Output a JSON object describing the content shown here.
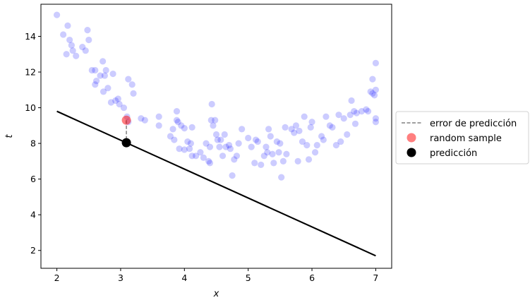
{
  "chart_data": {
    "type": "scatter",
    "title": "",
    "xlabel": "x",
    "ylabel": "t",
    "xlim": [
      1.75,
      7.25
    ],
    "ylim": [
      1.0,
      15.8
    ],
    "xticks": [
      2,
      3,
      4,
      5,
      6,
      7
    ],
    "yticks": [
      2,
      4,
      6,
      8,
      10,
      12,
      14
    ],
    "xtick_labels": [
      "2",
      "3",
      "4",
      "5",
      "6",
      "7"
    ],
    "ytick_labels": [
      "2",
      "4",
      "6",
      "8",
      "10",
      "12",
      "14"
    ],
    "grid": false,
    "legend_position": "outside-right",
    "colors": {
      "data_points": "#0000ff",
      "error_line": "#808080",
      "random_sample": "#ff0000",
      "prediction": "#000000",
      "model_line": "#000000"
    },
    "series": [
      {
        "kind": "scatter",
        "alpha": 0.2,
        "points": [
          [
            2.0,
            15.2
          ],
          [
            2.1,
            14.1
          ],
          [
            2.17,
            14.6
          ],
          [
            2.2,
            13.8
          ],
          [
            2.15,
            13.0
          ],
          [
            2.23,
            13.5
          ],
          [
            2.25,
            13.2
          ],
          [
            2.3,
            12.9
          ],
          [
            2.4,
            13.4
          ],
          [
            2.45,
            13.2
          ],
          [
            2.48,
            14.35
          ],
          [
            2.5,
            13.8
          ],
          [
            2.55,
            12.1
          ],
          [
            2.6,
            12.1
          ],
          [
            2.6,
            11.3
          ],
          [
            2.62,
            11.5
          ],
          [
            2.68,
            11.8
          ],
          [
            2.72,
            12.6
          ],
          [
            2.75,
            11.8
          ],
          [
            2.73,
            10.9
          ],
          [
            2.77,
            12.1
          ],
          [
            2.8,
            11.1
          ],
          [
            2.85,
            10.3
          ],
          [
            2.88,
            11.9
          ],
          [
            2.92,
            10.4
          ],
          [
            2.96,
            10.5
          ],
          [
            2.98,
            10.2
          ],
          [
            3.05,
            10.0
          ],
          [
            3.1,
            9.5
          ],
          [
            3.12,
            9.2
          ],
          [
            3.12,
            11.6
          ],
          [
            3.18,
            11.3
          ],
          [
            3.2,
            10.8
          ],
          [
            3.32,
            9.4
          ],
          [
            3.38,
            9.3
          ],
          [
            3.6,
            9.5
          ],
          [
            3.6,
            9.0
          ],
          [
            3.78,
            8.4
          ],
          [
            3.82,
            8.8
          ],
          [
            3.84,
            8.2
          ],
          [
            3.88,
            9.3
          ],
          [
            3.9,
            9.2
          ],
          [
            3.92,
            7.7
          ],
          [
            3.95,
            9.0
          ],
          [
            3.88,
            9.8
          ],
          [
            4.0,
            7.65
          ],
          [
            4.0,
            8.85
          ],
          [
            4.05,
            8.1
          ],
          [
            4.08,
            7.7
          ],
          [
            4.1,
            8.0
          ],
          [
            4.12,
            8.9
          ],
          [
            4.12,
            7.3
          ],
          [
            4.18,
            7.3
          ],
          [
            4.25,
            7.5
          ],
          [
            4.3,
            7.2
          ],
          [
            4.34,
            8.0
          ],
          [
            4.38,
            7.0
          ],
          [
            4.4,
            6.9
          ],
          [
            4.4,
            7.8
          ],
          [
            4.42,
            9.3
          ],
          [
            4.43,
            10.2
          ],
          [
            4.45,
            9.0
          ],
          [
            4.48,
            9.3
          ],
          [
            4.5,
            8.5
          ],
          [
            4.52,
            8.2
          ],
          [
            4.55,
            7.8
          ],
          [
            4.57,
            8.2
          ],
          [
            4.6,
            7.3
          ],
          [
            4.63,
            8.5
          ],
          [
            4.65,
            7.8
          ],
          [
            4.7,
            7.9
          ],
          [
            4.72,
            7.7
          ],
          [
            4.75,
            6.2
          ],
          [
            4.78,
            7.1
          ],
          [
            4.82,
            7.3
          ],
          [
            4.85,
            8.0
          ],
          [
            4.9,
            8.8
          ],
          [
            5.0,
            8.3
          ],
          [
            5.05,
            7.8
          ],
          [
            5.1,
            6.9
          ],
          [
            5.12,
            8.2
          ],
          [
            5.15,
            8.1
          ],
          [
            5.2,
            6.8
          ],
          [
            5.25,
            7.3
          ],
          [
            5.28,
            7.8
          ],
          [
            5.3,
            7.5
          ],
          [
            5.32,
            8.8
          ],
          [
            5.35,
            8.4
          ],
          [
            5.38,
            7.4
          ],
          [
            5.4,
            6.9
          ],
          [
            5.45,
            8.1
          ],
          [
            5.48,
            7.5
          ],
          [
            5.5,
            8.0
          ],
          [
            5.52,
            6.1
          ],
          [
            5.55,
            7.0
          ],
          [
            5.58,
            8.9
          ],
          [
            5.6,
            7.4
          ],
          [
            5.68,
            8.8
          ],
          [
            5.72,
            8.6
          ],
          [
            5.75,
            9.0
          ],
          [
            5.78,
            7.0
          ],
          [
            5.8,
            8.7
          ],
          [
            5.85,
            8.1
          ],
          [
            5.88,
            9.5
          ],
          [
            5.92,
            7.9
          ],
          [
            5.95,
            7.1
          ],
          [
            5.98,
            8.9
          ],
          [
            6.0,
            9.2
          ],
          [
            6.05,
            7.5
          ],
          [
            6.08,
            7.9
          ],
          [
            6.15,
            8.4
          ],
          [
            6.18,
            8.2
          ],
          [
            6.22,
            9.5
          ],
          [
            6.28,
            9.0
          ],
          [
            6.32,
            8.9
          ],
          [
            6.38,
            7.9
          ],
          [
            6.42,
            9.6
          ],
          [
            6.45,
            8.1
          ],
          [
            6.5,
            9.4
          ],
          [
            6.55,
            8.5
          ],
          [
            6.6,
            9.6
          ],
          [
            6.62,
            10.4
          ],
          [
            6.66,
            9.8
          ],
          [
            6.68,
            9.1
          ],
          [
            6.7,
            9.7
          ],
          [
            6.78,
            9.8
          ],
          [
            6.85,
            9.9
          ],
          [
            6.88,
            9.8
          ],
          [
            6.92,
            10.9
          ],
          [
            6.95,
            11.6
          ],
          [
            6.95,
            10.8
          ],
          [
            6.98,
            10.7
          ],
          [
            7.0,
            12.5
          ],
          [
            7.0,
            11.0
          ],
          [
            7.0,
            9.2
          ],
          [
            7.0,
            9.4
          ]
        ]
      },
      {
        "kind": "line",
        "name": "error de predicción",
        "points": [
          [
            3.09,
            9.3
          ],
          [
            3.09,
            8.04
          ]
        ]
      },
      {
        "kind": "scatter",
        "name": "random sample",
        "points": [
          [
            3.09,
            9.3
          ]
        ]
      },
      {
        "kind": "scatter",
        "name": "predicción",
        "points": [
          [
            3.09,
            8.04
          ]
        ]
      },
      {
        "kind": "line",
        "points": [
          [
            2.0,
            9.8
          ],
          [
            7.0,
            1.7
          ]
        ]
      }
    ],
    "legend": {
      "entries": [
        "error de predicción",
        "random sample",
        "predicción"
      ]
    }
  }
}
